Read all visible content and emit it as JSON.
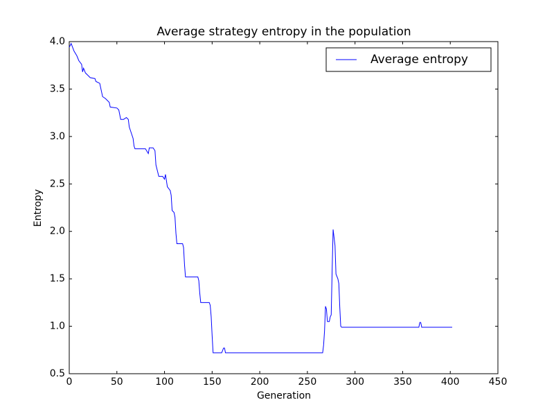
{
  "chart_data": {
    "type": "line",
    "title": "Average strategy entropy in the population",
    "xlabel": "Generation",
    "ylabel": "Entropy",
    "x": [
      0,
      2,
      5,
      8,
      10,
      13,
      14,
      15,
      17,
      20,
      22,
      27,
      28,
      32,
      35,
      38,
      42,
      43,
      50,
      52,
      54,
      57,
      60,
      62,
      63,
      65,
      67,
      68,
      69,
      80,
      83,
      84,
      88,
      90,
      91,
      93,
      94,
      98,
      100,
      101,
      103,
      106,
      107,
      108,
      110,
      111,
      112,
      113,
      119,
      120,
      121,
      122,
      135,
      136,
      137,
      138,
      147,
      148,
      149,
      150,
      151,
      160,
      162,
      163,
      164,
      266,
      267,
      268,
      269,
      270,
      271,
      273,
      274,
      275,
      276,
      277,
      279,
      280,
      282,
      283,
      284,
      285,
      286,
      367,
      368,
      369,
      370,
      402
    ],
    "series": [
      {
        "name": "Average entropy",
        "color": "#0000ff",
        "values": [
          3.94,
          3.98,
          3.9,
          3.85,
          3.8,
          3.76,
          3.68,
          3.72,
          3.67,
          3.64,
          3.62,
          3.61,
          3.58,
          3.56,
          3.42,
          3.4,
          3.36,
          3.31,
          3.3,
          3.28,
          3.18,
          3.18,
          3.2,
          3.18,
          3.1,
          3.04,
          2.98,
          2.9,
          2.87,
          2.87,
          2.82,
          2.88,
          2.88,
          2.85,
          2.7,
          2.62,
          2.58,
          2.58,
          2.55,
          2.6,
          2.47,
          2.43,
          2.38,
          2.22,
          2.2,
          2.15,
          1.98,
          1.87,
          1.87,
          1.83,
          1.65,
          1.52,
          1.52,
          1.48,
          1.35,
          1.25,
          1.25,
          1.22,
          1.1,
          0.9,
          0.72,
          0.72,
          0.77,
          0.77,
          0.72,
          0.72,
          0.8,
          0.95,
          1.21,
          1.18,
          1.05,
          1.05,
          1.1,
          1.12,
          1.6,
          2.02,
          1.85,
          1.55,
          1.5,
          1.45,
          1.2,
          1.0,
          0.99,
          0.99,
          1.04,
          1.04,
          0.99,
          0.99
        ]
      }
    ],
    "xlim": [
      0,
      450
    ],
    "xticks": [
      0,
      50,
      100,
      150,
      200,
      250,
      300,
      350,
      400,
      450
    ],
    "ylim": [
      0.5,
      4.0
    ],
    "yticks": [
      {
        "value": 0.5,
        "label": "0.5"
      },
      {
        "value": 1.0,
        "label": "1.0"
      },
      {
        "value": 1.5,
        "label": "1.5"
      },
      {
        "value": 2.0,
        "label": "2.0"
      },
      {
        "value": 2.5,
        "label": "2.5"
      },
      {
        "value": 3.0,
        "label": "3.0"
      },
      {
        "value": 3.5,
        "label": "3.5"
      },
      {
        "value": 4.0,
        "label": "4.0"
      }
    ],
    "legend": "upper right"
  }
}
